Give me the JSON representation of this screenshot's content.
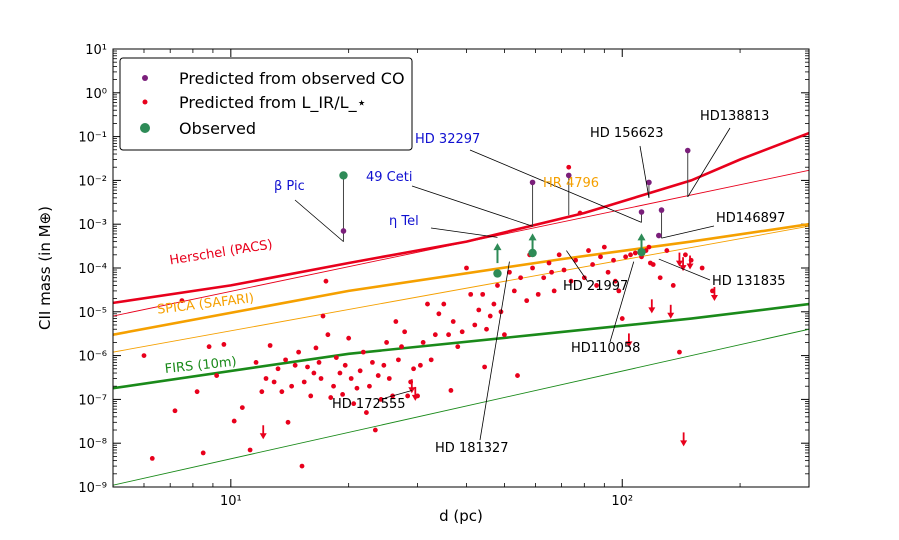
{
  "chart_data": {
    "type": "scatter",
    "xscale": "log",
    "yscale": "log",
    "xlim": [
      5,
      300
    ],
    "ylim": [
      1e-09,
      10
    ],
    "xlabel": "d (pc)",
    "ylabel": "CII mass (in M⊕)",
    "x_ticks": [
      {
        "value": 10,
        "label": "10¹"
      },
      {
        "value": 100,
        "label": "10²"
      }
    ],
    "y_ticks": [
      {
        "value": 1e-09,
        "label": "10⁻⁹"
      },
      {
        "value": 1e-08,
        "label": "10⁻⁸"
      },
      {
        "value": 1e-07,
        "label": "10⁻⁷"
      },
      {
        "value": 1e-06,
        "label": "10⁻⁶"
      },
      {
        "value": 1e-05,
        "label": "10⁻⁵"
      },
      {
        "value": 0.0001,
        "label": "10⁻⁴"
      },
      {
        "value": 0.001,
        "label": "10⁻³"
      },
      {
        "value": 0.01,
        "label": "10⁻²"
      },
      {
        "value": 0.1,
        "label": "10⁻¹"
      },
      {
        "value": 1,
        "label": "10⁰"
      },
      {
        "value": 10,
        "label": "10¹"
      }
    ],
    "legend": {
      "placement": "top-left",
      "entries": [
        {
          "label": "Predicted from observed CO",
          "color": "#7b1f7b",
          "marker": "small-dot"
        },
        {
          "label": "Predicted from L_IR/L_⋆",
          "color": "#e8001c",
          "marker": "small-dot"
        },
        {
          "label": "Observed",
          "color": "#2e8b57",
          "marker": "large-dot"
        }
      ]
    },
    "sensitivity_curves": [
      {
        "name": "Herschel (PACS)",
        "color": "#e8001c",
        "points": [
          [
            5,
            1.6e-05
          ],
          [
            10,
            4e-05
          ],
          [
            20,
            0.00013
          ],
          [
            40,
            0.0004
          ],
          [
            80,
            0.0018
          ],
          [
            150,
            0.01
          ],
          [
            200,
            0.03
          ],
          [
            300,
            0.12
          ]
        ]
      },
      {
        "name": "SPICA (SAFARI)",
        "color": "#f5a000",
        "points": [
          [
            5,
            3e-06
          ],
          [
            20,
            3e-05
          ],
          [
            70,
            0.00016
          ],
          [
            150,
            0.0004
          ],
          [
            300,
            0.001
          ]
        ]
      },
      {
        "name": "FIRS (10m)",
        "color": "#1a8a1a",
        "points": [
          [
            5,
            1.8e-07
          ],
          [
            20,
            1.1e-06
          ],
          [
            60,
            3e-06
          ],
          [
            150,
            7e-06
          ],
          [
            300,
            1.5e-05
          ]
        ]
      }
    ],
    "thin_lines": [
      {
        "color": "#e8001c",
        "from": [
          5,
          8e-06
        ],
        "to": [
          300,
          0.017
        ]
      },
      {
        "color": "#f5a000",
        "from": [
          5,
          1.2e-06
        ],
        "to": [
          300,
          0.0009
        ]
      },
      {
        "color": "#1a8a1a",
        "from": [
          5,
          1.1e-09
        ],
        "to": [
          300,
          4e-06
        ]
      }
    ],
    "predicted_lir": [
      [
        6.3,
        4.5e-09
      ],
      [
        7.2,
        5.5e-08
      ],
      [
        7.5,
        1.8e-05
      ],
      [
        8.2,
        1.5e-07
      ],
      [
        8.8,
        1.6e-06
      ],
      [
        9.2,
        3.5e-07
      ],
      [
        9.6,
        1.8e-06
      ],
      [
        10.2,
        3.2e-08
      ],
      [
        10.7,
        6.5e-08
      ],
      [
        11.2,
        7e-09
      ],
      [
        11.6,
        7e-07
      ],
      [
        12.0,
        1.5e-07
      ],
      [
        12.3,
        3e-07
      ],
      [
        12.6,
        1.7e-06
      ],
      [
        12.9,
        2.5e-07
      ],
      [
        13.2,
        5e-07
      ],
      [
        13.5,
        1.5e-07
      ],
      [
        13.8,
        8e-07
      ],
      [
        14.0,
        3e-08
      ],
      [
        14.3,
        2e-07
      ],
      [
        14.6,
        6e-07
      ],
      [
        14.9,
        1.2e-06
      ],
      [
        15.2,
        3e-09
      ],
      [
        15.4,
        2.5e-07
      ],
      [
        15.7,
        5.5e-07
      ],
      [
        16.0,
        1.2e-07
      ],
      [
        16.3,
        4e-07
      ],
      [
        16.5,
        1.5e-06
      ],
      [
        16.8,
        7e-07
      ],
      [
        17.0,
        3e-07
      ],
      [
        17.2,
        8e-06
      ],
      [
        17.5,
        5e-05
      ],
      [
        17.7,
        3e-06
      ],
      [
        18.0,
        1.1e-07
      ],
      [
        18.3,
        2e-07
      ],
      [
        18.6,
        9e-07
      ],
      [
        19.0,
        4e-07
      ],
      [
        19.3,
        1.3e-07
      ],
      [
        19.6,
        6e-07
      ],
      [
        20.0,
        2.5e-06
      ],
      [
        20.3,
        3e-07
      ],
      [
        20.6,
        8e-08
      ],
      [
        21.0,
        1.8e-07
      ],
      [
        21.4,
        4.5e-07
      ],
      [
        21.8,
        1.2e-06
      ],
      [
        22.2,
        5e-08
      ],
      [
        22.6,
        2e-07
      ],
      [
        23.0,
        7e-07
      ],
      [
        23.4,
        2e-08
      ],
      [
        23.8,
        3.5e-07
      ],
      [
        24.2,
        1e-07
      ],
      [
        24.6,
        6e-07
      ],
      [
        25.0,
        2e-06
      ],
      [
        25.4,
        3e-07
      ],
      [
        25.9,
        1.2e-07
      ],
      [
        26.4,
        6e-06
      ],
      [
        26.8,
        8e-07
      ],
      [
        27.3,
        1.6e-06
      ],
      [
        27.8,
        3.5e-06
      ],
      [
        28.3,
        1.2e-07
      ],
      [
        28.8,
        2.5e-07
      ],
      [
        29.3,
        5e-07
      ],
      [
        30.0,
        1.2e-07
      ],
      [
        30.5,
        6e-07
      ],
      [
        31.0,
        2e-06
      ],
      [
        31.8,
        1.5e-05
      ],
      [
        32.5,
        8e-07
      ],
      [
        33.3,
        3e-06
      ],
      [
        34.0,
        9e-06
      ],
      [
        35.0,
        1.5e-05
      ],
      [
        36.0,
        3e-06
      ],
      [
        37.0,
        6e-06
      ],
      [
        38.0,
        1.6e-06
      ],
      [
        39.0,
        3.5e-06
      ],
      [
        40.0,
        0.0001
      ],
      [
        41.0,
        2.5e-05
      ],
      [
        42.0,
        5e-06
      ],
      [
        43.0,
        1.1e-05
      ],
      [
        44.0,
        2.5e-05
      ],
      [
        45.0,
        4e-06
      ],
      [
        46.0,
        8e-06
      ],
      [
        47.0,
        1.5e-05
      ],
      [
        48.0,
        4e-05
      ],
      [
        49.0,
        1e-05
      ],
      [
        50.0,
        3e-06
      ],
      [
        51.5,
        8e-05
      ],
      [
        53.0,
        3e-05
      ],
      [
        54.0,
        3.5e-07
      ],
      [
        55.0,
        6e-05
      ],
      [
        57.0,
        1.8e-05
      ],
      [
        59.0,
        0.0001
      ],
      [
        61.0,
        2.5e-05
      ],
      [
        63.0,
        6e-05
      ],
      [
        65.0,
        0.00013
      ],
      [
        67.0,
        3e-05
      ],
      [
        69.0,
        0.0002
      ],
      [
        71.0,
        9e-05
      ],
      [
        73.0,
        0.02
      ],
      [
        74.0,
        5e-05
      ],
      [
        76.0,
        0.00015
      ],
      [
        78.0,
        0.0018
      ],
      [
        80.0,
        6e-05
      ],
      [
        82.0,
        0.00025
      ],
      [
        84.0,
        0.00012
      ],
      [
        86.0,
        4e-05
      ],
      [
        88.0,
        0.00018
      ],
      [
        90.0,
        0.0003
      ],
      [
        92.0,
        8e-05
      ],
      [
        95.0,
        0.00015
      ],
      [
        98.0,
        3e-05
      ],
      [
        100.0,
        7e-06
      ],
      [
        102.0,
        0.00018
      ],
      [
        105.0,
        0.0002
      ],
      [
        108.0,
        0.00022
      ],
      [
        112.0,
        0.00018
      ],
      [
        115.0,
        0.00025
      ],
      [
        118.0,
        0.00013
      ],
      [
        120.0,
        0.00012
      ],
      [
        125.0,
        6e-05
      ],
      [
        130.0,
        0.00025
      ],
      [
        135.0,
        4e-05
      ],
      [
        140.0,
        1.2e-06
      ],
      [
        145.0,
        0.0002
      ],
      [
        150.0,
        0.00015
      ],
      [
        160.0,
        0.0001
      ],
      [
        170.0,
        3e-05
      ],
      [
        6.0,
        1e-06
      ],
      [
        8.5,
        6e-09
      ],
      [
        36.5,
        1.6e-07
      ],
      [
        44.5,
        5.5e-07
      ],
      [
        58.0,
        0.0002
      ],
      [
        66.0,
        8e-05
      ],
      [
        96.0,
        5e-05
      ],
      [
        117.0,
        0.0003
      ]
    ],
    "upper_limits": [
      [
        12.1,
        1.6e-08
      ],
      [
        29.0,
        1.8e-07
      ],
      [
        29.6,
        1.2e-07
      ],
      [
        104.0,
        2e-06
      ],
      [
        119.0,
        1.2e-05
      ],
      [
        133.0,
        9e-06
      ],
      [
        140.0,
        0.00014
      ],
      [
        143.0,
        0.00011
      ],
      [
        149.0,
        0.00012
      ],
      [
        143.5,
        1.1e-08
      ],
      [
        172.0,
        2.3e-05
      ]
    ],
    "predicted_co": [
      [
        19.4,
        0.0007
      ],
      [
        59.0,
        0.009
      ],
      [
        73.0,
        0.013
      ],
      [
        112.0,
        0.0019
      ],
      [
        117.0,
        0.009
      ],
      [
        126.0,
        0.0021
      ],
      [
        147.0,
        0.048
      ],
      [
        124.0,
        0.00055
      ]
    ],
    "observed": [
      [
        19.4,
        0.013
      ],
      [
        48.0,
        7.5e-05
      ],
      [
        59.0,
        0.00022
      ],
      [
        112.0,
        0.00023
      ]
    ],
    "observed_lower_limits": [
      [
        48.0,
        0.0003
      ],
      [
        59.0,
        0.0005
      ],
      [
        112.0,
        0.0005
      ]
    ],
    "annotations": [
      {
        "label": "β Pic",
        "color": "#1010d0",
        "point": [
          19.4,
          0.0004
        ]
      },
      {
        "label": "η Tel",
        "color": "#1010d0",
        "point": [
          48.0,
          0.0005
        ]
      },
      {
        "label": "49 Ceti",
        "color": "#1010d0",
        "point": [
          59.0,
          0.0009
        ]
      },
      {
        "label": "HD 32297",
        "color": "#1010d0",
        "point": [
          112.0,
          0.0011
        ]
      },
      {
        "label": "HR 4796",
        "color": "#f5a000",
        "point": [
          73.0,
          0.0016
        ]
      },
      {
        "label": "HD 156623",
        "color": "#000000",
        "point": [
          117.0,
          0.004
        ]
      },
      {
        "label": "HD138813",
        "color": "#000000",
        "point": [
          147.0,
          0.0042
        ]
      },
      {
        "label": "HD146897",
        "color": "#000000",
        "point": [
          126.0,
          0.00048
        ]
      },
      {
        "label": "HD 131835",
        "color": "#000000",
        "point": [
          124.0,
          0.00016
        ]
      },
      {
        "label": "HD 21997",
        "color": "#000000",
        "point": [
          72.0,
          0.00025
        ]
      },
      {
        "label": "HD110058",
        "color": "#000000",
        "point": [
          107.0,
          0.00014
        ]
      },
      {
        "label": "HD 172555",
        "color": "#000000",
        "point": [
          29.0,
          1.6e-07
        ]
      },
      {
        "label": "HD 181327",
        "color": "#000000",
        "point": [
          51.5,
          0.00014
        ]
      }
    ]
  }
}
